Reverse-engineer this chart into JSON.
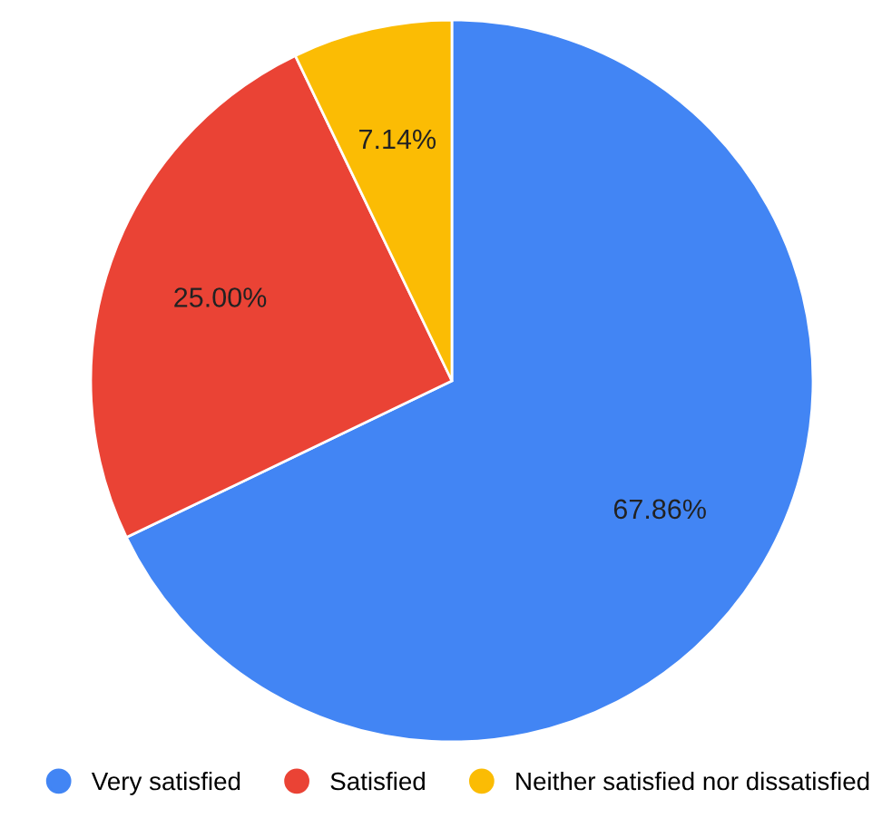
{
  "chart_data": {
    "type": "pie",
    "categories": [
      "Very satisfied",
      "Satisfied",
      "Neither satisfied nor dissatisfied"
    ],
    "values": [
      67.86,
      25.0,
      7.14
    ],
    "colors": [
      "#4285f4",
      "#ea4335",
      "#fbbc04"
    ],
    "value_labels": [
      "67.86%",
      "25.00%",
      "7.14%"
    ],
    "legend": "bottom"
  }
}
